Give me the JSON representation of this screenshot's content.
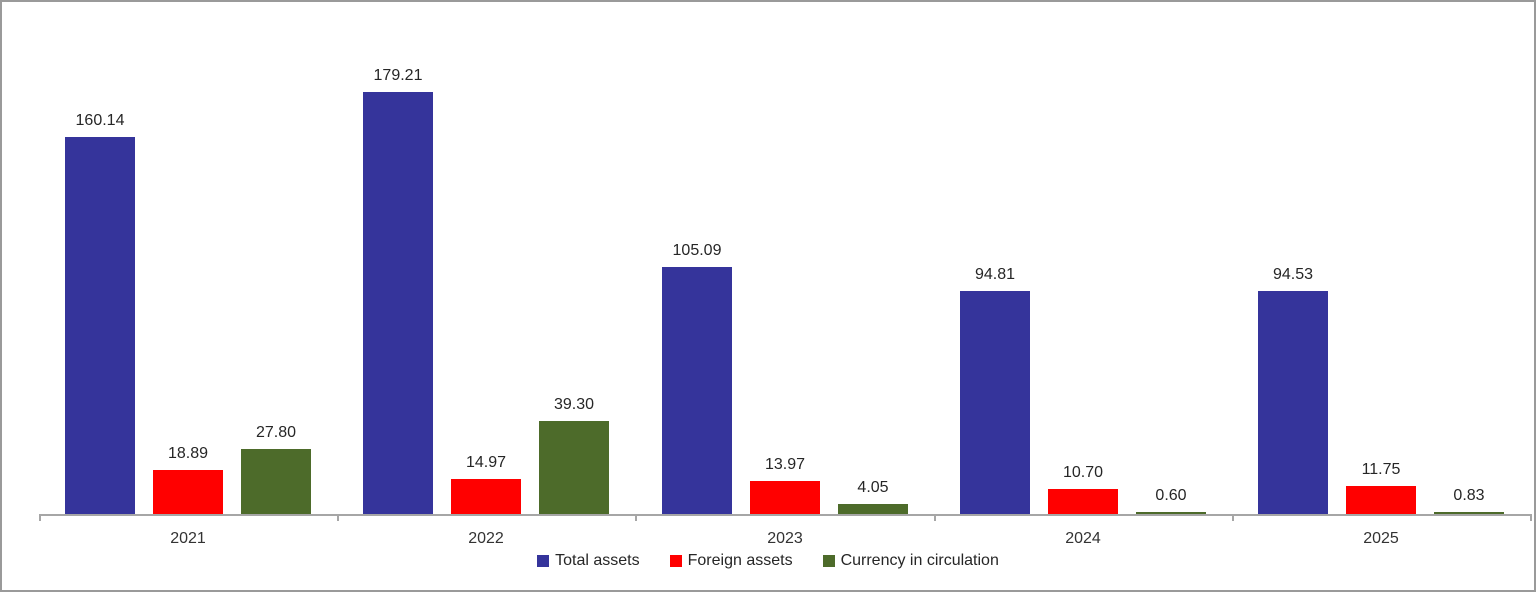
{
  "chart_data": {
    "type": "bar",
    "categories": [
      "2021",
      "2022",
      "2023",
      "2024",
      "2025"
    ],
    "series": [
      {
        "name": "Total assets",
        "color": "#35349b",
        "values": [
          160.14,
          179.21,
          105.09,
          94.81,
          94.53
        ]
      },
      {
        "name": "Foreign assets",
        "color": "#ff0000",
        "values": [
          18.89,
          14.97,
          13.97,
          10.7,
          11.75
        ]
      },
      {
        "name": "Currency in circulation",
        "color": "#4d6b2a",
        "values": [
          27.8,
          39.3,
          4.05,
          0.6,
          0.83
        ]
      }
    ],
    "title": "",
    "xlabel": "",
    "ylabel": "",
    "ylim": [
      0,
      179.21
    ],
    "grid": false,
    "legend_position": "bottom",
    "data_labels": true,
    "axis_color": "#a6a6a6",
    "label_color": "#262626"
  }
}
